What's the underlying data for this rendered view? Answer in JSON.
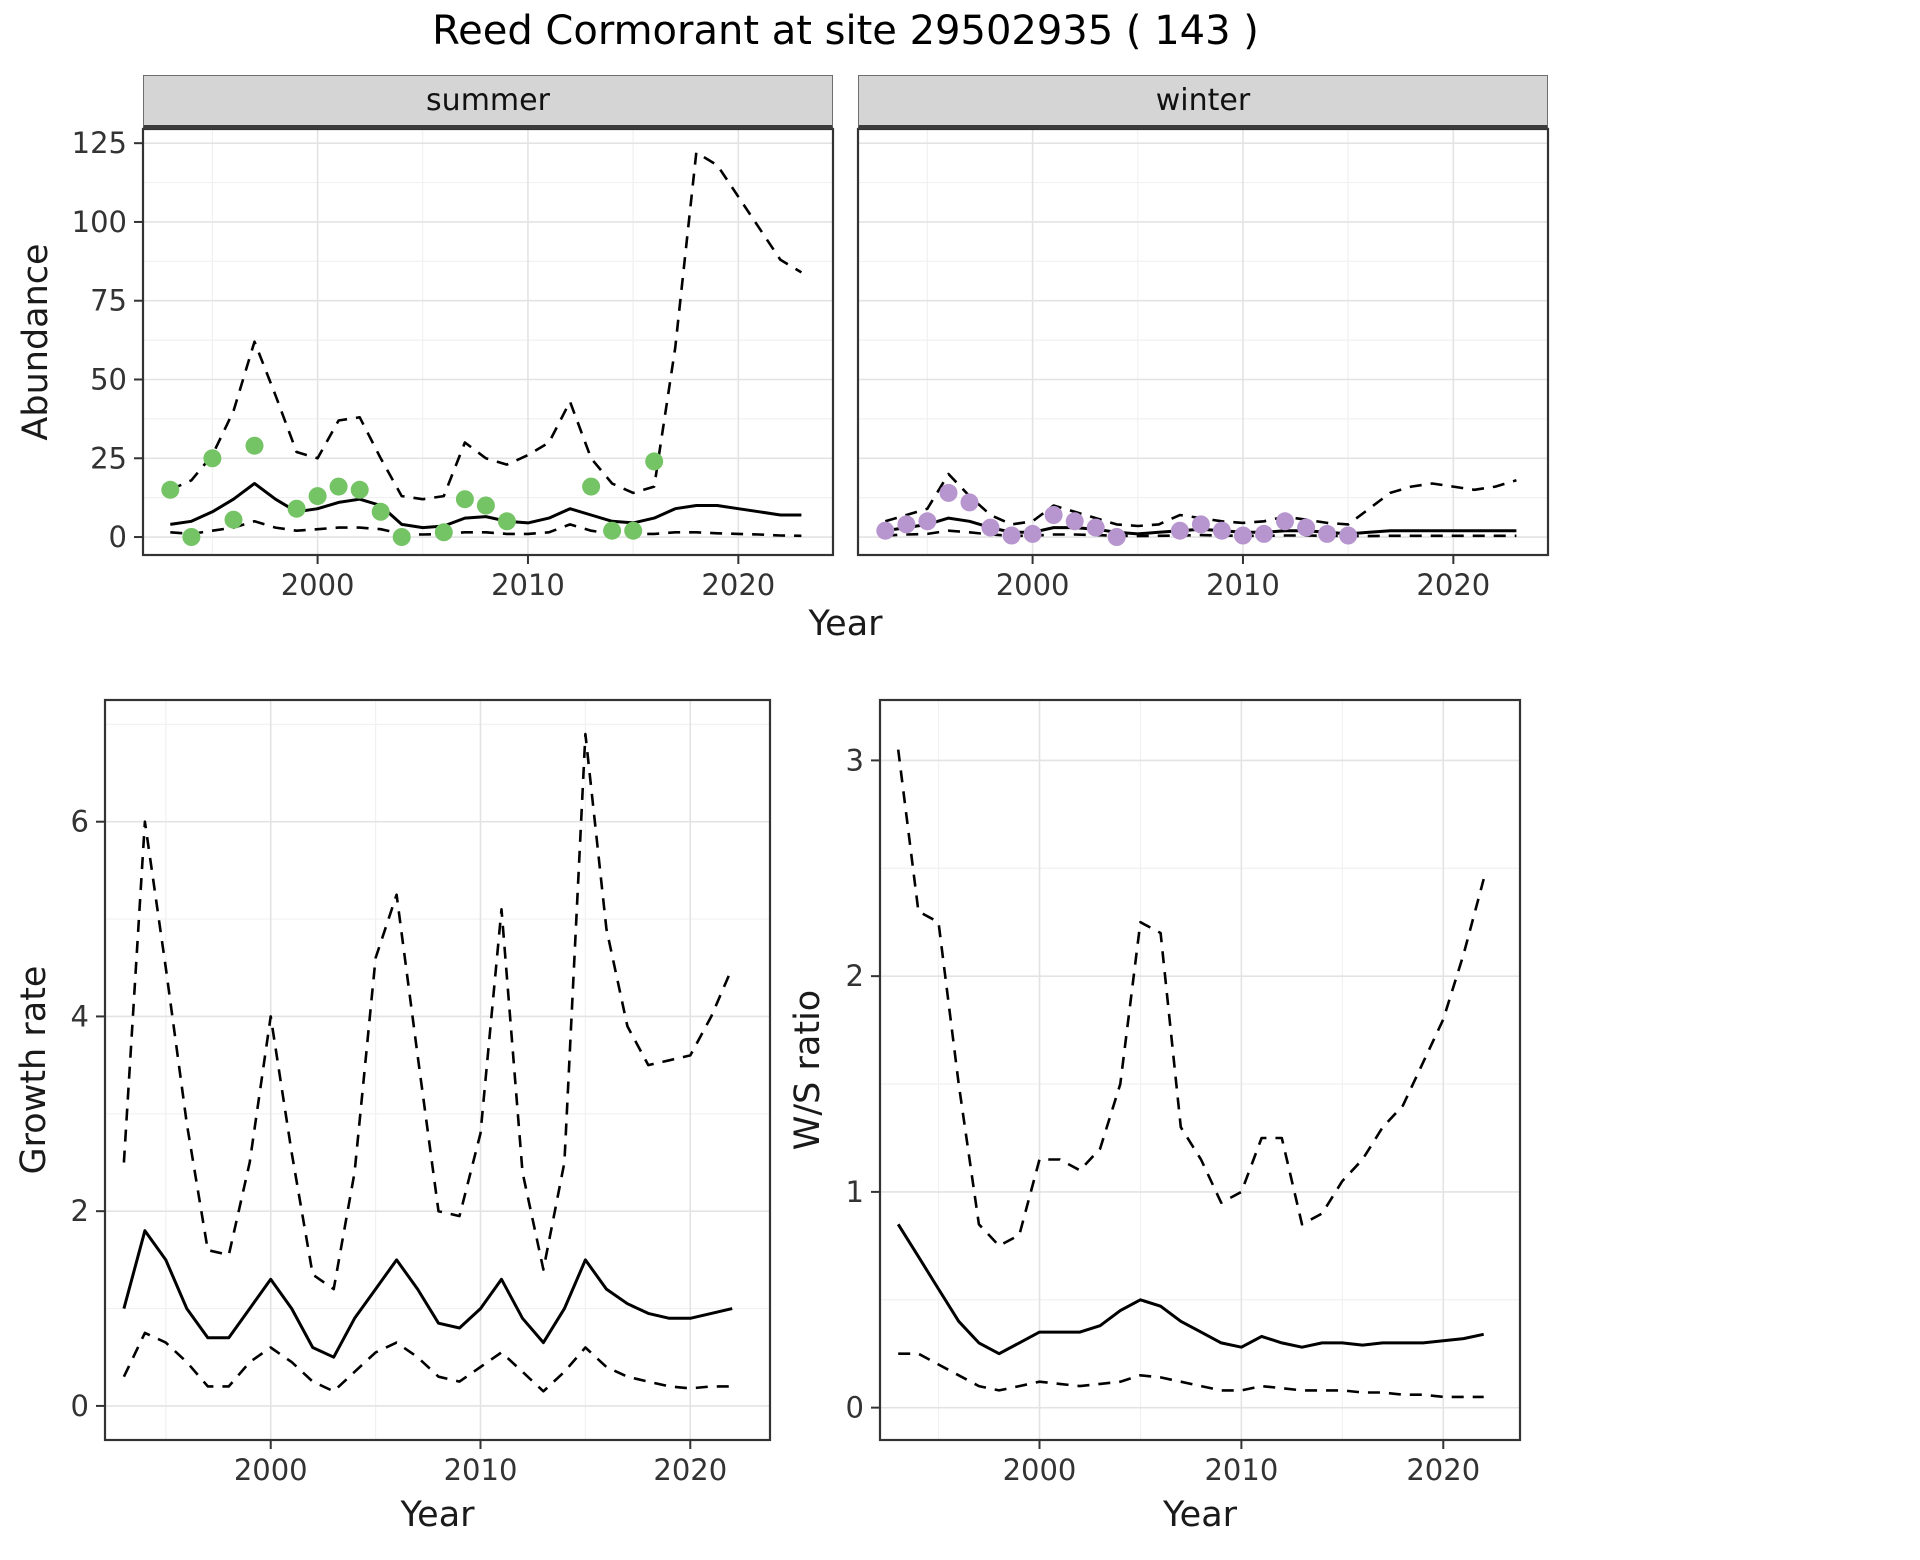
{
  "title": "Reed Cormorant at site 29502935 ( 143 )",
  "colors": {
    "line": "#000000",
    "summer_points": "#74c365",
    "winter_points": "#b795ce",
    "grid_major": "#e3e3e3",
    "grid_minor": "#f1f1f1",
    "strip_bg": "#d5d5d5"
  },
  "chart_data": [
    {
      "id": "abundance-summer",
      "type": "line",
      "facet": "summer",
      "xlabel": "Year",
      "ylabel": "Abundance",
      "xlim": [
        1991.7,
        2024.5
      ],
      "ylim": [
        -5.7,
        129.5
      ],
      "xticks": [
        2000,
        2010,
        2020
      ],
      "yticks": [
        0,
        25,
        50,
        75,
        100,
        125
      ],
      "series": [
        {
          "name": "model-fit",
          "style": "solid",
          "x": [
            1993,
            1994,
            1995,
            1996,
            1997,
            1998,
            1999,
            2000,
            2001,
            2002,
            2003,
            2004,
            2005,
            2006,
            2007,
            2008,
            2009,
            2010,
            2011,
            2012,
            2013,
            2014,
            2015,
            2016,
            2017,
            2018,
            2019,
            2020,
            2021,
            2022,
            2023
          ],
          "y": [
            4,
            5,
            8,
            12,
            17,
            12,
            8,
            9,
            11,
            12,
            10,
            4,
            3,
            3.5,
            6,
            6.5,
            5,
            4.5,
            6,
            9,
            7,
            5,
            4.5,
            6,
            9,
            10,
            10,
            9,
            8,
            7,
            7
          ]
        },
        {
          "name": "upper-ci",
          "style": "dashed",
          "x": [
            1993,
            1994,
            1995,
            1996,
            1997,
            1998,
            1999,
            2000,
            2001,
            2002,
            2003,
            2004,
            2005,
            2006,
            2007,
            2008,
            2009,
            2010,
            2011,
            2012,
            2013,
            2014,
            2015,
            2016,
            2017,
            2018,
            2019,
            2020,
            2021,
            2022,
            2023
          ],
          "y": [
            15,
            18,
            26,
            40,
            62,
            45,
            27,
            25,
            37,
            38,
            25,
            13,
            12,
            13,
            30,
            25,
            23,
            26,
            30,
            43,
            25,
            17,
            14,
            16,
            60,
            122,
            118,
            108,
            98,
            88,
            84
          ]
        },
        {
          "name": "lower-ci",
          "style": "dashed",
          "x": [
            1993,
            1994,
            1995,
            1996,
            1997,
            1998,
            1999,
            2000,
            2001,
            2002,
            2003,
            2004,
            2005,
            2006,
            2007,
            2008,
            2009,
            2010,
            2011,
            2012,
            2013,
            2014,
            2015,
            2016,
            2017,
            2018,
            2019,
            2020,
            2021,
            2022,
            2023
          ],
          "y": [
            1.5,
            1,
            2,
            3,
            5,
            3,
            2,
            2.5,
            3,
            3,
            2.5,
            1,
            0.8,
            1,
            1.5,
            1.5,
            1,
            1,
            1.5,
            4,
            2,
            1,
            1,
            1,
            1.5,
            1.5,
            1.2,
            1,
            0.8,
            0.5,
            0.4
          ]
        }
      ],
      "points": {
        "name": "observed-counts-summer",
        "color_key": "summer_points",
        "x": [
          1993,
          1994,
          1995,
          1996,
          1997,
          1999,
          2000,
          2001,
          2002,
          2003,
          2004,
          2006,
          2007,
          2008,
          2009,
          2013,
          2014,
          2015,
          2016
        ],
        "y": [
          15,
          0,
          25,
          5.5,
          29,
          9,
          13,
          16,
          15,
          8,
          0,
          1.5,
          12,
          10,
          5,
          16,
          2,
          2,
          24
        ]
      }
    },
    {
      "id": "abundance-winter",
      "type": "line",
      "facet": "winter",
      "xlabel": "Year",
      "ylabel": "Abundance",
      "xlim": [
        1991.7,
        2024.5
      ],
      "ylim": [
        -5.7,
        129.5
      ],
      "xticks": [
        2000,
        2010,
        2020
      ],
      "yticks": [
        0,
        25,
        50,
        75,
        100,
        125
      ],
      "series": [
        {
          "name": "model-fit",
          "style": "solid",
          "x": [
            1993,
            1994,
            1995,
            1996,
            1997,
            1998,
            1999,
            2000,
            2001,
            2002,
            2003,
            2004,
            2005,
            2006,
            2007,
            2008,
            2009,
            2010,
            2011,
            2012,
            2013,
            2014,
            2015,
            2016,
            2017,
            2018,
            2019,
            2020,
            2021,
            2022,
            2023
          ],
          "y": [
            2,
            3,
            4,
            6,
            5,
            3,
            1.5,
            1.5,
            3,
            3,
            2.5,
            1.5,
            1,
            1.5,
            2,
            2.5,
            2,
            1.5,
            1.5,
            2,
            2,
            1.5,
            1,
            1.5,
            2,
            2,
            2,
            2,
            2,
            2,
            2
          ]
        },
        {
          "name": "upper-ci",
          "style": "dashed",
          "x": [
            1993,
            1994,
            1995,
            1996,
            1997,
            1998,
            1999,
            2000,
            2001,
            2002,
            2003,
            2004,
            2005,
            2006,
            2007,
            2008,
            2009,
            2010,
            2011,
            2012,
            2013,
            2014,
            2015,
            2016,
            2017,
            2018,
            2019,
            2020,
            2021,
            2022,
            2023
          ],
          "y": [
            5,
            7,
            9,
            20,
            13,
            7,
            4,
            5,
            10,
            8,
            6,
            4,
            3.5,
            4,
            7,
            6,
            5,
            4.5,
            5,
            6.5,
            5.5,
            4.5,
            4,
            9,
            14,
            16,
            17,
            16,
            15,
            16,
            18
          ]
        },
        {
          "name": "lower-ci",
          "style": "dashed",
          "x": [
            1993,
            1994,
            1995,
            1996,
            1997,
            1998,
            1999,
            2000,
            2001,
            2002,
            2003,
            2004,
            2005,
            2006,
            2007,
            2008,
            2009,
            2010,
            2011,
            2012,
            2013,
            2014,
            2015,
            2016,
            2017,
            2018,
            2019,
            2020,
            2021,
            2022,
            2023
          ],
          "y": [
            0.5,
            0.8,
            1,
            2,
            1.5,
            0.8,
            0.4,
            0.4,
            0.8,
            0.8,
            0.6,
            0.4,
            0.3,
            0.4,
            0.5,
            0.6,
            0.5,
            0.4,
            0.4,
            0.5,
            0.5,
            0.4,
            0.3,
            0.3,
            0.4,
            0.4,
            0.4,
            0.4,
            0.4,
            0.4,
            0.4
          ]
        }
      ],
      "points": {
        "name": "observed-counts-winter",
        "color_key": "winter_points",
        "x": [
          1993,
          1994,
          1995,
          1996,
          1997,
          1998,
          1999,
          2000,
          2001,
          2002,
          2003,
          2004,
          2007,
          2008,
          2009,
          2010,
          2011,
          2012,
          2013,
          2014,
          2015
        ],
        "y": [
          2,
          4,
          5,
          14,
          11,
          3,
          0.5,
          1,
          7,
          5,
          3,
          0,
          2,
          4,
          2,
          0.5,
          1,
          5,
          3,
          1,
          0.5
        ]
      }
    },
    {
      "id": "growth-rate",
      "type": "line",
      "xlabel": "Year",
      "ylabel": "Growth rate",
      "xlim": [
        1992.1,
        2023.8
      ],
      "ylim": [
        -0.35,
        7.25
      ],
      "xticks": [
        2000,
        2010,
        2020
      ],
      "yticks": [
        0,
        2,
        4,
        6
      ],
      "series": [
        {
          "name": "model-fit",
          "style": "solid",
          "x": [
            1993,
            1994,
            1995,
            1996,
            1997,
            1998,
            1999,
            2000,
            2001,
            2002,
            2003,
            2004,
            2005,
            2006,
            2007,
            2008,
            2009,
            2010,
            2011,
            2012,
            2013,
            2014,
            2015,
            2016,
            2017,
            2018,
            2019,
            2020,
            2021,
            2022
          ],
          "y": [
            1.0,
            1.8,
            1.5,
            1.0,
            0.7,
            0.7,
            1.0,
            1.3,
            1.0,
            0.6,
            0.5,
            0.9,
            1.2,
            1.5,
            1.2,
            0.85,
            0.8,
            1.0,
            1.3,
            0.9,
            0.65,
            1.0,
            1.5,
            1.2,
            1.05,
            0.95,
            0.9,
            0.9,
            0.95,
            1.0
          ]
        },
        {
          "name": "upper-ci",
          "style": "dashed",
          "x": [
            1993,
            1994,
            1995,
            1996,
            1997,
            1998,
            1999,
            2000,
            2001,
            2002,
            2003,
            2004,
            2005,
            2006,
            2007,
            2008,
            2009,
            2010,
            2011,
            2012,
            2013,
            2014,
            2015,
            2016,
            2017,
            2018,
            2019,
            2020,
            2021,
            2022
          ],
          "y": [
            2.5,
            6.0,
            4.5,
            2.9,
            1.6,
            1.55,
            2.5,
            4.0,
            2.6,
            1.35,
            1.2,
            2.4,
            4.6,
            5.25,
            3.6,
            2.0,
            1.95,
            2.8,
            5.1,
            2.4,
            1.4,
            2.5,
            6.9,
            4.9,
            3.9,
            3.5,
            3.55,
            3.6,
            4.0,
            4.5
          ]
        },
        {
          "name": "lower-ci",
          "style": "dashed",
          "x": [
            1993,
            1994,
            1995,
            1996,
            1997,
            1998,
            1999,
            2000,
            2001,
            2002,
            2003,
            2004,
            2005,
            2006,
            2007,
            2008,
            2009,
            2010,
            2011,
            2012,
            2013,
            2014,
            2015,
            2016,
            2017,
            2018,
            2019,
            2020,
            2021,
            2022
          ],
          "y": [
            0.3,
            0.75,
            0.65,
            0.45,
            0.2,
            0.2,
            0.45,
            0.6,
            0.45,
            0.25,
            0.15,
            0.35,
            0.55,
            0.65,
            0.5,
            0.3,
            0.25,
            0.4,
            0.55,
            0.35,
            0.15,
            0.35,
            0.6,
            0.4,
            0.3,
            0.25,
            0.2,
            0.18,
            0.2,
            0.2
          ]
        }
      ]
    },
    {
      "id": "ws-ratio",
      "type": "line",
      "xlabel": "Year",
      "ylabel": "W/S ratio",
      "xlim": [
        1992.1,
        2023.8
      ],
      "ylim": [
        -0.15,
        3.28
      ],
      "xticks": [
        2000,
        2010,
        2020
      ],
      "yticks": [
        0,
        1,
        2,
        3
      ],
      "series": [
        {
          "name": "model-fit",
          "style": "solid",
          "x": [
            1993,
            1994,
            1995,
            1996,
            1997,
            1998,
            1999,
            2000,
            2001,
            2002,
            2003,
            2004,
            2005,
            2006,
            2007,
            2008,
            2009,
            2010,
            2011,
            2012,
            2013,
            2014,
            2015,
            2016,
            2017,
            2018,
            2019,
            2020,
            2021,
            2022
          ],
          "y": [
            0.85,
            0.7,
            0.55,
            0.4,
            0.3,
            0.25,
            0.3,
            0.35,
            0.35,
            0.35,
            0.38,
            0.45,
            0.5,
            0.47,
            0.4,
            0.35,
            0.3,
            0.28,
            0.33,
            0.3,
            0.28,
            0.3,
            0.3,
            0.29,
            0.3,
            0.3,
            0.3,
            0.31,
            0.32,
            0.34
          ]
        },
        {
          "name": "upper-ci",
          "style": "dashed",
          "x": [
            1993,
            1994,
            1995,
            1996,
            1997,
            1998,
            1999,
            2000,
            2001,
            2002,
            2003,
            2004,
            2005,
            2006,
            2007,
            2008,
            2009,
            2010,
            2011,
            2012,
            2013,
            2014,
            2015,
            2016,
            2017,
            2018,
            2019,
            2020,
            2021,
            2022
          ],
          "y": [
            3.05,
            2.3,
            2.25,
            1.5,
            0.85,
            0.75,
            0.8,
            1.15,
            1.15,
            1.1,
            1.2,
            1.5,
            2.25,
            2.2,
            1.3,
            1.15,
            0.95,
            1.0,
            1.25,
            1.25,
            0.85,
            0.9,
            1.05,
            1.15,
            1.3,
            1.4,
            1.6,
            1.8,
            2.1,
            2.45
          ]
        },
        {
          "name": "lower-ci",
          "style": "dashed",
          "x": [
            1993,
            1994,
            1995,
            1996,
            1997,
            1998,
            1999,
            2000,
            2001,
            2002,
            2003,
            2004,
            2005,
            2006,
            2007,
            2008,
            2009,
            2010,
            2011,
            2012,
            2013,
            2014,
            2015,
            2016,
            2017,
            2018,
            2019,
            2020,
            2021,
            2022
          ],
          "y": [
            0.25,
            0.25,
            0.2,
            0.15,
            0.1,
            0.08,
            0.1,
            0.12,
            0.11,
            0.1,
            0.11,
            0.12,
            0.15,
            0.14,
            0.12,
            0.1,
            0.08,
            0.08,
            0.1,
            0.09,
            0.08,
            0.08,
            0.08,
            0.07,
            0.07,
            0.06,
            0.06,
            0.05,
            0.05,
            0.05
          ]
        }
      ]
    }
  ]
}
